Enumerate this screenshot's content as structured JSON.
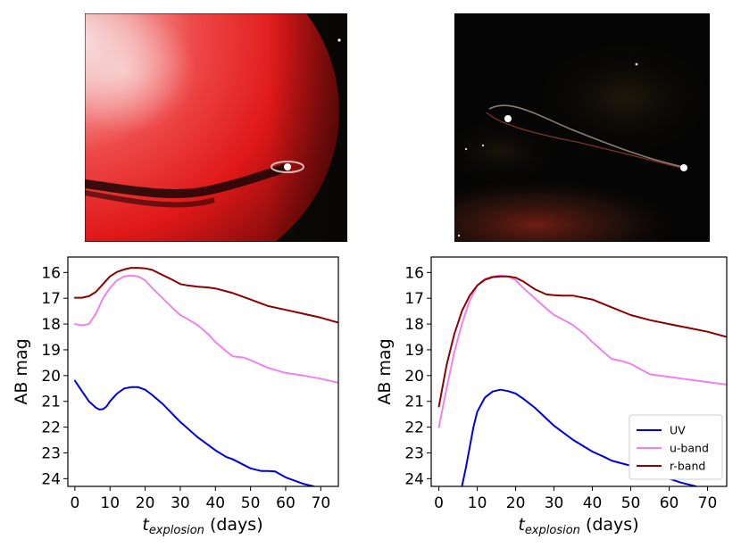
{
  "chart_data": [
    {
      "type": "line",
      "panel": "left",
      "xlabel_main": "t",
      "xlabel_sub": "explosion",
      "xlabel_unit": " (days)",
      "ylabel": "AB mag",
      "xlim": [
        -2,
        75
      ],
      "ylim": [
        24.3,
        15.4
      ],
      "y_inverted": true,
      "x_ticks": [
        0,
        10,
        20,
        30,
        40,
        50,
        60,
        70
      ],
      "y_ticks": [
        16,
        17,
        18,
        19,
        20,
        21,
        22,
        23,
        24
      ],
      "series": [
        {
          "name": "UV",
          "color": "#0000dd",
          "x": [
            0,
            2,
            4,
            6,
            7,
            8,
            9,
            10,
            12,
            14,
            16,
            18,
            20,
            22,
            25,
            30,
            35,
            40,
            43,
            45,
            50,
            53,
            55,
            57,
            60,
            65,
            68
          ],
          "y": [
            20.2,
            20.6,
            21.0,
            21.25,
            21.32,
            21.3,
            21.2,
            21.0,
            20.7,
            20.5,
            20.45,
            20.45,
            20.55,
            20.75,
            21.1,
            21.8,
            22.4,
            22.9,
            23.15,
            23.25,
            23.6,
            23.7,
            23.7,
            23.72,
            23.95,
            24.2,
            24.3
          ]
        },
        {
          "name": "u-band",
          "color": "#ee82ee",
          "x": [
            0,
            2,
            4,
            6,
            8,
            10,
            12,
            14,
            16,
            18,
            20,
            22,
            25,
            28,
            30,
            32,
            35,
            38,
            40,
            43,
            45,
            48,
            50,
            55,
            60,
            65,
            70,
            75
          ],
          "y": [
            18.0,
            18.05,
            18.0,
            17.6,
            17.0,
            16.6,
            16.3,
            16.15,
            16.12,
            16.15,
            16.3,
            16.6,
            17.0,
            17.4,
            17.65,
            17.8,
            18.05,
            18.4,
            18.7,
            19.05,
            19.25,
            19.3,
            19.4,
            19.7,
            19.9,
            20.0,
            20.12,
            20.28
          ]
        },
        {
          "name": "r-band",
          "color": "#8b0000",
          "x": [
            0,
            2,
            4,
            6,
            8,
            10,
            12,
            14,
            16,
            18,
            20,
            22,
            25,
            28,
            30,
            32,
            35,
            38,
            40,
            45,
            50,
            55,
            60,
            65,
            70,
            75
          ],
          "y": [
            16.98,
            16.98,
            16.92,
            16.75,
            16.45,
            16.15,
            15.98,
            15.88,
            15.82,
            15.82,
            15.84,
            15.9,
            16.1,
            16.3,
            16.45,
            16.5,
            16.55,
            16.58,
            16.62,
            16.8,
            17.05,
            17.3,
            17.45,
            17.6,
            17.75,
            17.95
          ]
        }
      ]
    },
    {
      "type": "line",
      "panel": "right",
      "xlabel_main": "t",
      "xlabel_sub": "explosion",
      "xlabel_unit": " (days)",
      "ylabel": "AB mag",
      "xlim": [
        -2,
        75
      ],
      "ylim": [
        24.3,
        15.4
      ],
      "y_inverted": true,
      "x_ticks": [
        0,
        10,
        20,
        30,
        40,
        50,
        60,
        70
      ],
      "y_ticks": [
        16,
        17,
        18,
        19,
        20,
        21,
        22,
        23,
        24
      ],
      "legend_position": "bottom-right",
      "series": [
        {
          "name": "UV",
          "color": "#0000dd",
          "x": [
            6,
            7,
            8,
            9,
            10,
            12,
            14,
            16,
            18,
            20,
            22,
            25,
            30,
            35,
            40,
            43,
            45,
            50,
            55,
            60,
            63,
            67
          ],
          "y": [
            24.3,
            23.6,
            22.8,
            22.0,
            21.4,
            20.85,
            20.62,
            20.55,
            20.6,
            20.7,
            20.9,
            21.25,
            21.95,
            22.5,
            22.95,
            23.15,
            23.3,
            23.5,
            23.7,
            24.0,
            24.15,
            24.3
          ]
        },
        {
          "name": "u-band",
          "color": "#ee82ee",
          "x": [
            0,
            2,
            4,
            6,
            8,
            10,
            12,
            14,
            16,
            18,
            20,
            22,
            25,
            28,
            30,
            32,
            35,
            38,
            40,
            43,
            45,
            48,
            50,
            55,
            60,
            65,
            70,
            75
          ],
          "y": [
            22.0,
            20.5,
            19.1,
            18.0,
            17.1,
            16.5,
            16.25,
            16.15,
            16.12,
            16.15,
            16.3,
            16.6,
            17.0,
            17.4,
            17.65,
            17.8,
            18.05,
            18.4,
            18.7,
            19.1,
            19.35,
            19.45,
            19.55,
            19.95,
            20.05,
            20.15,
            20.25,
            20.35
          ]
        },
        {
          "name": "r-band",
          "color": "#8b0000",
          "x": [
            0,
            2,
            4,
            6,
            8,
            10,
            12,
            14,
            16,
            18,
            20,
            22,
            25,
            28,
            30,
            32,
            35,
            40,
            45,
            50,
            55,
            60,
            65,
            70,
            75
          ],
          "y": [
            21.2,
            19.6,
            18.4,
            17.5,
            16.9,
            16.5,
            16.28,
            16.18,
            16.15,
            16.15,
            16.2,
            16.35,
            16.65,
            16.85,
            16.88,
            16.9,
            16.9,
            17.05,
            17.35,
            17.65,
            17.85,
            18.0,
            18.15,
            18.3,
            18.5
          ]
        }
      ]
    }
  ],
  "images": [
    {
      "subject": "red-star-companion-simulation"
    },
    {
      "subject": "post-explosion-simulation"
    }
  ]
}
